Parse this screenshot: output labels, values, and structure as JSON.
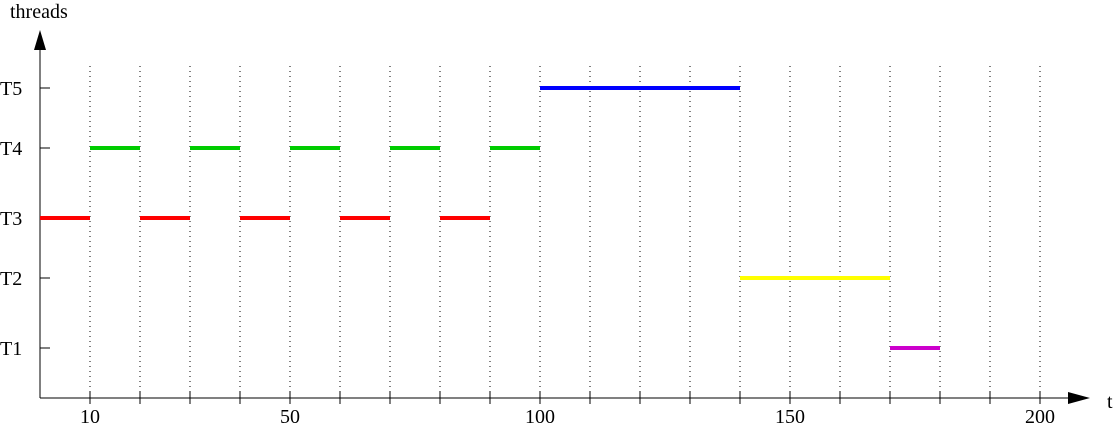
{
  "chart_data": {
    "type": "gantt",
    "xlabel": "t",
    "ylabel": "threads",
    "xlim": [
      0,
      207
    ],
    "x_ticks": [
      10,
      20,
      30,
      40,
      50,
      60,
      70,
      80,
      90,
      100,
      110,
      120,
      130,
      140,
      150,
      160,
      170,
      180,
      190,
      200
    ],
    "x_tick_labels": [
      "10",
      "50",
      "100",
      "150",
      "200"
    ],
    "x_tick_label_values": [
      10,
      50,
      100,
      150,
      200
    ],
    "gridlines": [
      10,
      20,
      30,
      40,
      50,
      60,
      70,
      80,
      90,
      100,
      110,
      120,
      130,
      140,
      150,
      160,
      170,
      180,
      190,
      200
    ],
    "grid": "vertical dotted",
    "threads": [
      "T1",
      "T2",
      "T3",
      "T4",
      "T5"
    ],
    "series": [
      {
        "name": "T3",
        "color": "#ff0000",
        "segments": [
          [
            0,
            10
          ],
          [
            20,
            30
          ],
          [
            40,
            50
          ],
          [
            60,
            70
          ],
          [
            80,
            90
          ]
        ]
      },
      {
        "name": "T4",
        "color": "#00cc00",
        "segments": [
          [
            10,
            20
          ],
          [
            30,
            40
          ],
          [
            50,
            60
          ],
          [
            70,
            80
          ],
          [
            90,
            100
          ]
        ]
      },
      {
        "name": "T5",
        "color": "#0000ff",
        "segments": [
          [
            100,
            140
          ]
        ]
      },
      {
        "name": "T2",
        "color": "#ffff00",
        "segments": [
          [
            140,
            170
          ]
        ]
      },
      {
        "name": "T1",
        "color": "#cc00cc",
        "segments": [
          [
            170,
            180
          ]
        ]
      }
    ]
  }
}
